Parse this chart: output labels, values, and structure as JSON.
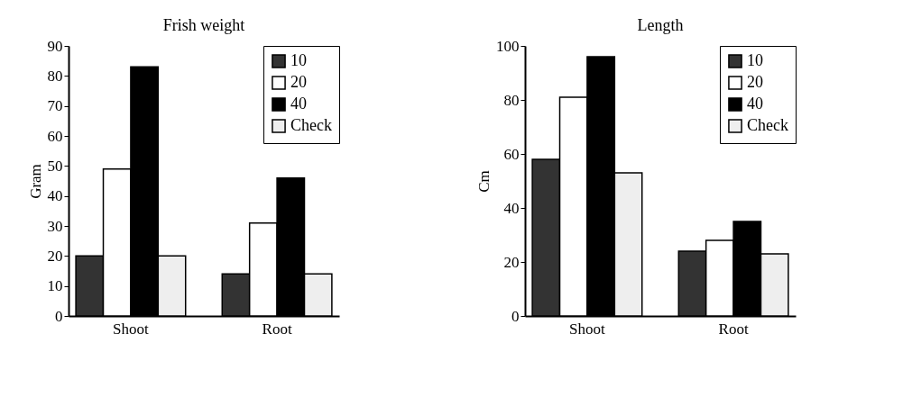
{
  "chart_data": [
    {
      "type": "bar",
      "title": "Frish weight",
      "ylabel": "Gram",
      "categories": [
        "Shoot",
        "Root"
      ],
      "ylim": [
        0,
        90
      ],
      "yticks": [
        0,
        10,
        20,
        30,
        40,
        50,
        60,
        70,
        80,
        90
      ],
      "grid": false,
      "legend": "top right",
      "series": [
        {
          "name": "10",
          "color": "#333333",
          "values": [
            20,
            14
          ]
        },
        {
          "name": "20",
          "color": "#ffffff",
          "values": [
            49,
            31
          ]
        },
        {
          "name": "40",
          "color": "#000000",
          "values": [
            83,
            46
          ]
        },
        {
          "name": "Check",
          "color": "#eeeeee",
          "values": [
            20,
            14
          ]
        }
      ]
    },
    {
      "type": "bar",
      "title": "Length",
      "ylabel": "Cm",
      "categories": [
        "Shoot",
        "Root"
      ],
      "ylim": [
        0,
        100
      ],
      "yticks": [
        0,
        20,
        40,
        60,
        80,
        100
      ],
      "grid": false,
      "legend": "top right",
      "series": [
        {
          "name": "10",
          "color": "#333333",
          "values": [
            58,
            24
          ]
        },
        {
          "name": "20",
          "color": "#ffffff",
          "values": [
            81,
            28
          ]
        },
        {
          "name": "40",
          "color": "#000000",
          "values": [
            96,
            35
          ]
        },
        {
          "name": "Check",
          "color": "#eeeeee",
          "values": [
            53,
            23
          ]
        }
      ]
    }
  ]
}
